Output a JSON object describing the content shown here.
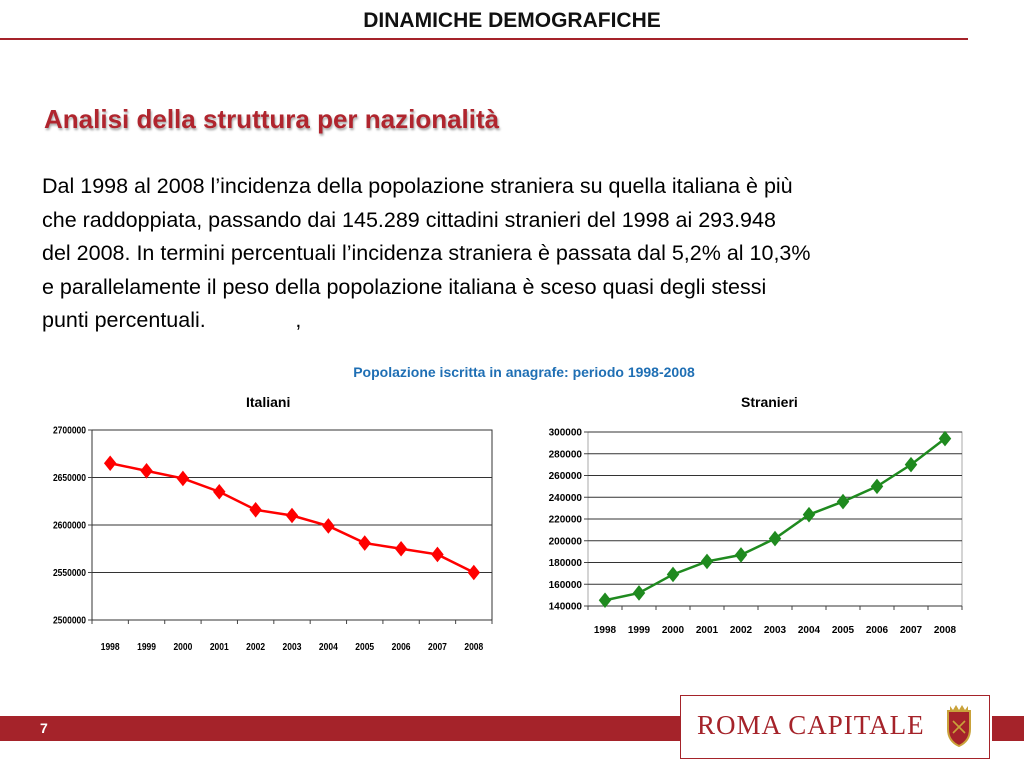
{
  "header": {
    "title": "DINAMICHE DEMOGRAFICHE"
  },
  "section": {
    "title": "Analisi della struttura per nazionalità"
  },
  "body": {
    "lines": [
      "Dal 1998 al 2008 l’incidenza della popolazione straniera su quella italiana è più",
      "che raddoppiata, passando dai 145.289 cittadini stranieri del 1998 ai 293.948",
      "del 2008. In termini percentuali l’incidenza straniera è passata dal 5,2% al 10,3%",
      "e parallelamente il peso della popolazione italiana è sceso quasi degli stessi",
      "punti percentuali.               ,"
    ]
  },
  "charts": {
    "caption": "Popolazione iscritta in anagrafe: periodo 1998-2008",
    "italiani_heading": "Italiani",
    "stranieri_heading": "Stranieri"
  },
  "chart_data": [
    {
      "type": "line",
      "title": "Italiani",
      "xlabel": "",
      "ylabel": "",
      "x": [
        "1998",
        "1999",
        "2000",
        "2001",
        "2002",
        "2003",
        "2004",
        "2005",
        "2006",
        "2007",
        "2008"
      ],
      "values": [
        2665000,
        2657000,
        2649000,
        2635000,
        2616000,
        2610000,
        2599000,
        2581000,
        2575000,
        2569000,
        2550000
      ],
      "ylim": [
        2500000,
        2700000
      ],
      "yticks": [
        "2500000",
        "2550000",
        "2600000",
        "2650000",
        "2700000"
      ],
      "grid": true,
      "color": "#ff0000",
      "marker": "diamond"
    },
    {
      "type": "line",
      "title": "Stranieri",
      "xlabel": "",
      "ylabel": "",
      "x": [
        "1998",
        "1999",
        "2000",
        "2001",
        "2002",
        "2003",
        "2004",
        "2005",
        "2006",
        "2007",
        "2008"
      ],
      "values": [
        145289,
        152000,
        169000,
        181000,
        187000,
        202000,
        224000,
        236000,
        250000,
        270000,
        293948
      ],
      "ylim": [
        140000,
        300000
      ],
      "yticks": [
        "140000",
        "160000",
        "180000",
        "200000",
        "220000",
        "240000",
        "260000",
        "280000",
        "300000"
      ],
      "grid": true,
      "color": "#1f8a1f",
      "marker": "diamond"
    }
  ],
  "footer": {
    "page_number": "7",
    "logo_text": "ROMA CAPITALE",
    "accent_color": "#a5232a"
  }
}
